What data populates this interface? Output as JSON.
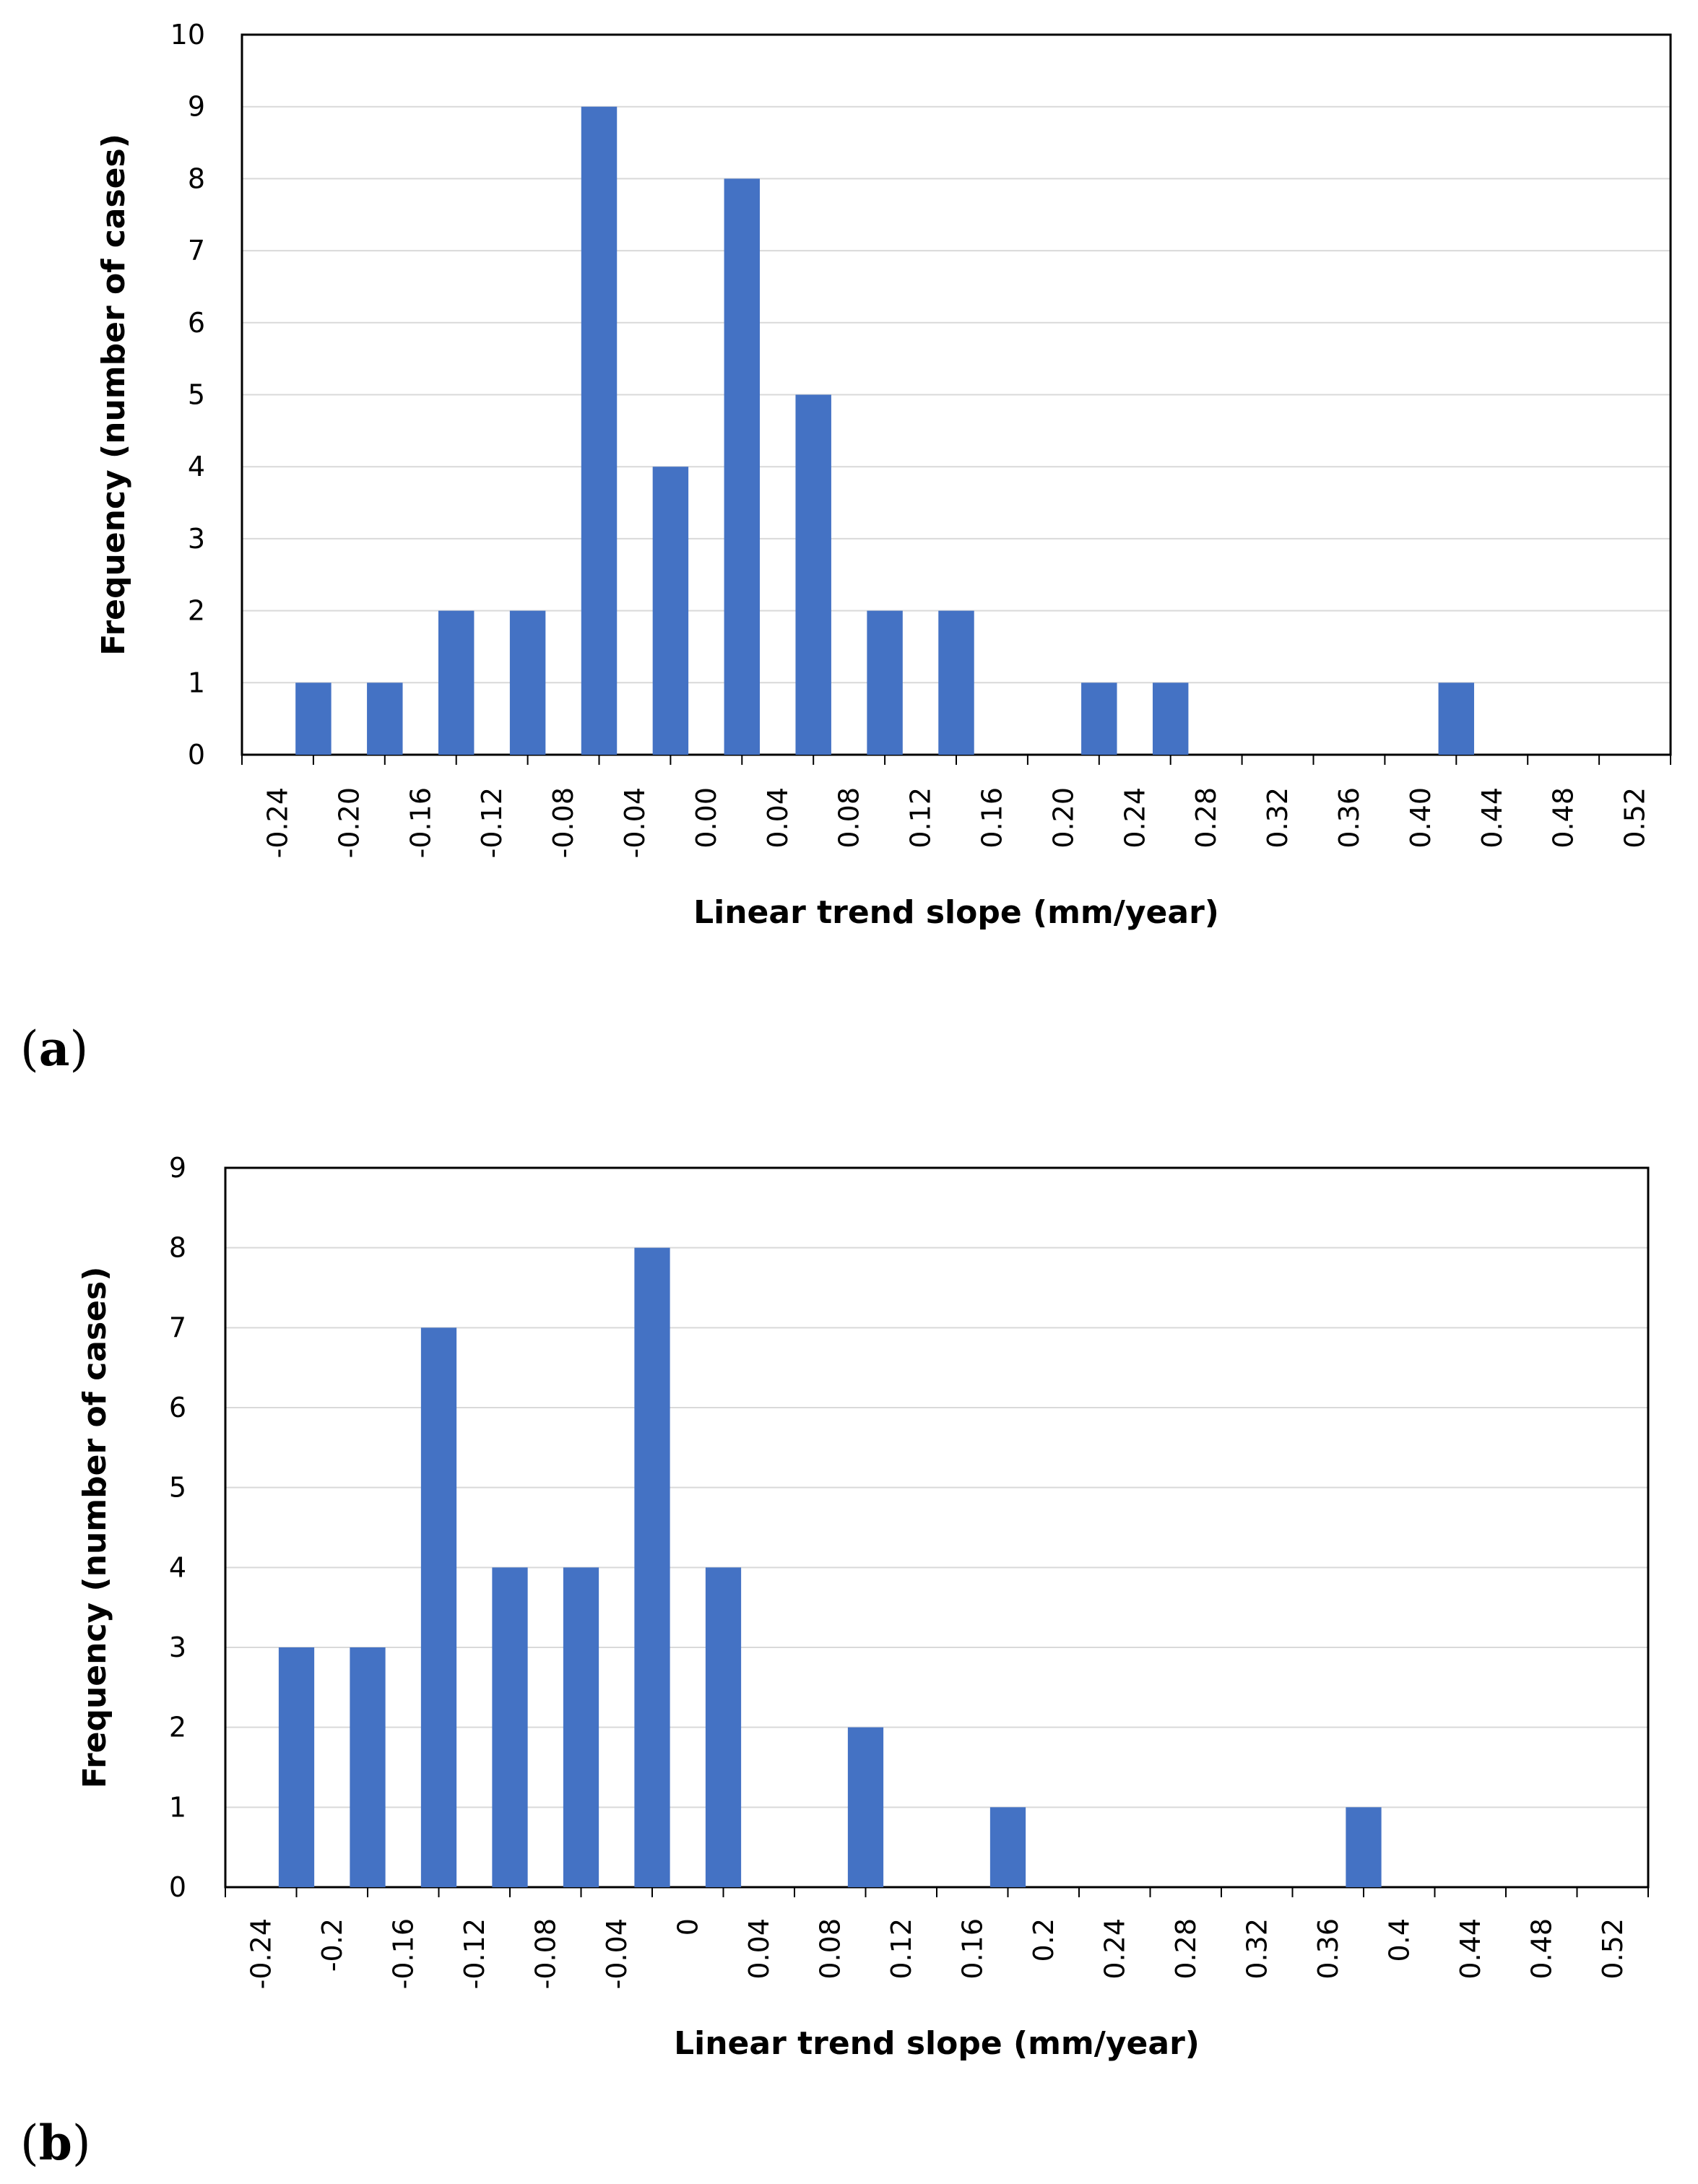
{
  "colors": {
    "bar": "#4472C4",
    "grid": "#D9D9D9",
    "axis": "#000000",
    "frame": "#000000"
  },
  "chart_data": [
    {
      "type": "bar",
      "panel_label": "a",
      "categories": [
        "-0.24",
        "-0.20",
        "-0.16",
        "-0.12",
        "-0.08",
        "-0.04",
        "0.00",
        "0.04",
        "0.08",
        "0.12",
        "0.16",
        "0.20",
        "0.24",
        "0.28",
        "0.32",
        "0.36",
        "0.40",
        "0.44",
        "0.48",
        "0.52"
      ],
      "values": [
        1,
        1,
        2,
        2,
        9,
        4,
        8,
        5,
        2,
        2,
        0,
        1,
        1,
        0,
        0,
        0,
        1,
        0,
        0,
        0
      ],
      "yticks": [
        "0",
        "1",
        "2",
        "3",
        "4",
        "5",
        "6",
        "7",
        "8",
        "9",
        "10"
      ],
      "ylim": [
        0,
        10
      ],
      "xlabel": "Linear trend slope (mm/year)",
      "ylabel": "Frequency (number of cases)",
      "grid": true,
      "legend": "none"
    },
    {
      "type": "bar",
      "panel_label": "b",
      "categories": [
        "-0.24",
        "-0.2",
        "-0.16",
        "-0.12",
        "-0.08",
        "-0.04",
        "0",
        "0.04",
        "0.08",
        "0.12",
        "0.16",
        "0.2",
        "0.24",
        "0.28",
        "0.32",
        "0.36",
        "0.4",
        "0.44",
        "0.48",
        "0.52"
      ],
      "values": [
        3,
        3,
        7,
        4,
        4,
        8,
        4,
        0,
        2,
        0,
        1,
        0,
        0,
        0,
        0,
        1,
        0,
        0,
        0,
        0
      ],
      "yticks": [
        "0",
        "1",
        "2",
        "3",
        "4",
        "5",
        "6",
        "7",
        "8",
        "9"
      ],
      "ylim": [
        0,
        9
      ],
      "xlabel": "Linear trend slope (mm/year)",
      "ylabel": "Frequency (number of cases)",
      "grid": true,
      "legend": "none"
    }
  ]
}
